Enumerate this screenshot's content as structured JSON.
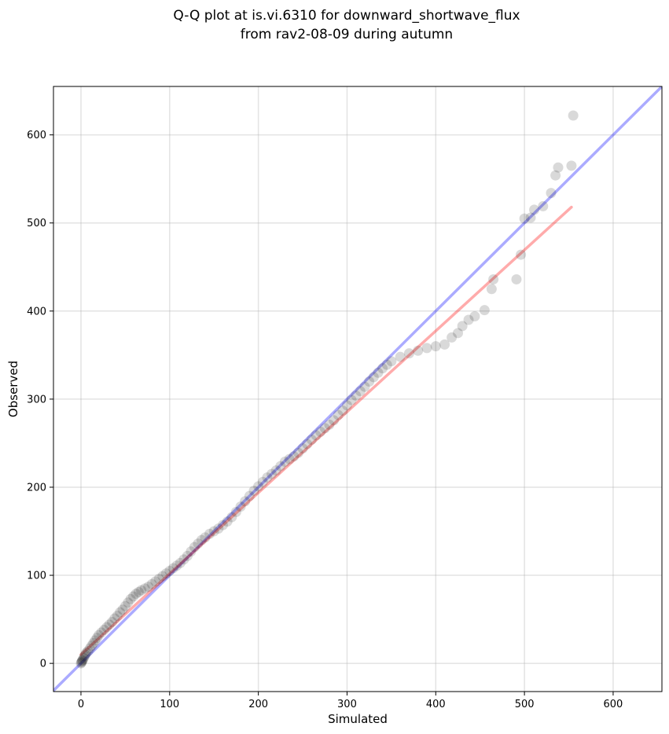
{
  "chart_data": {
    "type": "scatter",
    "title_line1": "Q-Q plot at is.vi.6310 for downward_shortwave_flux",
    "title_line2": "from rav2-08-09 during autumn",
    "xlabel": "Simulated",
    "ylabel": "Observed",
    "xlim": [
      -31,
      655
    ],
    "ylim": [
      -32,
      655
    ],
    "xticks": [
      0,
      100,
      200,
      300,
      400,
      500,
      600
    ],
    "yticks": [
      0,
      100,
      200,
      300,
      400,
      500,
      600
    ],
    "grid": true,
    "reference_line": {
      "name": "1:1",
      "color": "#0000ff",
      "alpha": 0.33,
      "x": [
        -31,
        655
      ],
      "y": [
        -31,
        655
      ]
    },
    "fit_line": {
      "color": "#ff0000",
      "alpha": 0.33,
      "x": [
        0,
        553
      ],
      "y": [
        10,
        518
      ]
    },
    "point_color": "#000000",
    "points": [
      [
        0,
        0
      ],
      [
        0.5,
        1
      ],
      [
        1,
        2
      ],
      [
        1.5,
        3
      ],
      [
        2,
        4
      ],
      [
        3,
        6
      ],
      [
        4,
        8
      ],
      [
        5,
        10
      ],
      [
        6,
        12
      ],
      [
        8,
        14
      ],
      [
        10,
        17
      ],
      [
        12,
        20
      ],
      [
        14,
        23
      ],
      [
        16,
        26
      ],
      [
        18,
        29
      ],
      [
        20,
        32
      ],
      [
        23,
        35
      ],
      [
        26,
        38
      ],
      [
        29,
        41
      ],
      [
        32,
        44
      ],
      [
        35,
        47
      ],
      [
        38,
        51
      ],
      [
        41,
        54
      ],
      [
        44,
        58
      ],
      [
        47,
        61
      ],
      [
        50,
        65
      ],
      [
        53,
        69
      ],
      [
        56,
        73
      ],
      [
        59,
        76
      ],
      [
        62,
        79
      ],
      [
        65,
        81
      ],
      [
        68,
        83
      ],
      [
        72,
        85
      ],
      [
        76,
        87
      ],
      [
        80,
        90
      ],
      [
        84,
        93
      ],
      [
        88,
        96
      ],
      [
        92,
        99
      ],
      [
        96,
        102
      ],
      [
        100,
        105
      ],
      [
        104,
        108
      ],
      [
        108,
        111
      ],
      [
        112,
        114
      ],
      [
        116,
        118
      ],
      [
        120,
        122
      ],
      [
        124,
        127
      ],
      [
        128,
        132
      ],
      [
        132,
        136
      ],
      [
        136,
        140
      ],
      [
        140,
        143
      ],
      [
        145,
        147
      ],
      [
        150,
        150
      ],
      [
        155,
        153
      ],
      [
        160,
        157
      ],
      [
        165,
        161
      ],
      [
        170,
        166
      ],
      [
        175,
        172
      ],
      [
        180,
        178
      ],
      [
        185,
        184
      ],
      [
        190,
        190
      ],
      [
        195,
        196
      ],
      [
        200,
        201
      ],
      [
        205,
        206
      ],
      [
        210,
        211
      ],
      [
        215,
        215
      ],
      [
        220,
        219
      ],
      [
        225,
        224
      ],
      [
        230,
        229
      ],
      [
        235,
        232
      ],
      [
        240,
        235
      ],
      [
        245,
        239
      ],
      [
        250,
        244
      ],
      [
        255,
        249
      ],
      [
        260,
        254
      ],
      [
        265,
        259
      ],
      [
        270,
        263
      ],
      [
        275,
        267
      ],
      [
        280,
        271
      ],
      [
        285,
        276
      ],
      [
        290,
        282
      ],
      [
        295,
        287
      ],
      [
        300,
        293
      ],
      [
        305,
        299
      ],
      [
        310,
        304
      ],
      [
        315,
        309
      ],
      [
        320,
        314
      ],
      [
        325,
        320
      ],
      [
        330,
        325
      ],
      [
        335,
        330
      ],
      [
        340,
        335
      ],
      [
        345,
        339
      ],
      [
        350,
        343
      ],
      [
        360,
        348
      ],
      [
        370,
        352
      ],
      [
        380,
        355
      ],
      [
        390,
        358
      ],
      [
        400,
        360
      ],
      [
        410,
        362
      ],
      [
        418,
        370
      ],
      [
        425,
        375
      ],
      [
        430,
        383
      ],
      [
        437,
        390
      ],
      [
        444,
        394
      ],
      [
        455,
        401
      ],
      [
        463,
        425
      ],
      [
        465,
        436
      ],
      [
        491,
        436
      ],
      [
        496,
        464
      ],
      [
        500,
        505
      ],
      [
        507,
        506
      ],
      [
        511,
        515
      ],
      [
        521,
        519
      ],
      [
        530,
        534
      ],
      [
        535,
        554
      ],
      [
        538,
        563
      ],
      [
        553,
        565
      ],
      [
        555,
        622
      ]
    ]
  }
}
